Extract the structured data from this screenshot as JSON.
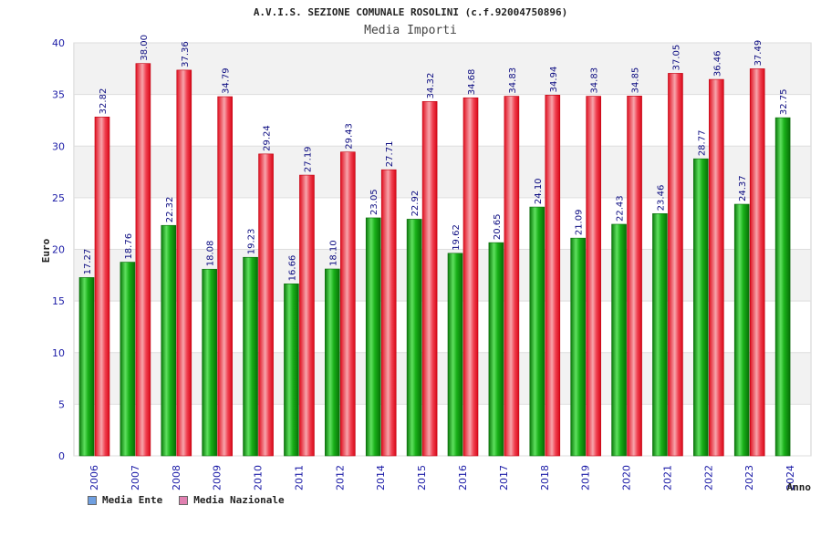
{
  "chart_data": {
    "type": "bar",
    "title": "A.V.I.S. SEZIONE COMUNALE ROSOLINI (c.f.92004750896)",
    "subtitle": "Media Importi",
    "xlabel": "Anno",
    "ylabel": "Euro",
    "ylim": [
      0,
      40
    ],
    "yticks": [
      0,
      5,
      10,
      15,
      20,
      25,
      30,
      35,
      40
    ],
    "categories": [
      "2006",
      "2007",
      "2008",
      "2009",
      "2010",
      "2011",
      "2012",
      "2014",
      "2015",
      "2016",
      "2017",
      "2018",
      "2019",
      "2020",
      "2021",
      "2022",
      "2023",
      "2024"
    ],
    "series": [
      {
        "name": "Media Ente",
        "labels": [
          "17.27",
          "18.76",
          "22.32",
          "18.08",
          "19.23",
          "16.66",
          "18.10",
          "23.05",
          "22.92",
          "19.62",
          "20.65",
          "24.10",
          "21.09",
          "22.43",
          "23.46",
          "28.77",
          "24.37",
          "32.75"
        ],
        "values": [
          17.27,
          18.76,
          22.32,
          18.08,
          19.23,
          16.66,
          18.1,
          23.05,
          22.92,
          19.62,
          20.65,
          24.1,
          21.09,
          22.43,
          23.46,
          28.77,
          24.37,
          32.75
        ]
      },
      {
        "name": "Media Nazionale",
        "labels": [
          "32.82",
          "38.00",
          "37.36",
          "34.79",
          "29.24",
          "27.19",
          "29.43",
          "27.71",
          "34.32",
          "34.68",
          "34.83",
          "34.94",
          "34.83",
          "34.85",
          "37.05",
          "36.46",
          "37.49",
          null
        ],
        "values": [
          32.82,
          38.0,
          37.36,
          34.79,
          29.24,
          27.19,
          29.43,
          27.71,
          34.32,
          34.68,
          34.83,
          34.94,
          34.83,
          34.85,
          37.05,
          36.46,
          37.49,
          null
        ]
      }
    ],
    "grid": true,
    "legend_position": "bottom-left"
  },
  "legend": {
    "ente": "Media Ente",
    "nazionale": "Media Nazionale",
    "ente_color": "#6f9fe0",
    "nazionale_color": "#e080b0"
  }
}
